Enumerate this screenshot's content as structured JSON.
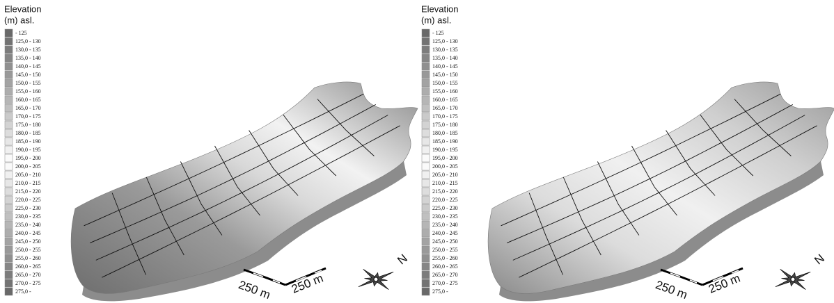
{
  "panels": [
    {
      "legend": {
        "title_lines": [
          "Elevation",
          "(m) asl."
        ],
        "entries": [
          "- 125",
          "125,0 - 130",
          "130,0 - 135",
          "135,0 - 140",
          "140,0 - 145",
          "145,0 - 150",
          "150,0 - 155",
          "155,0 - 160",
          "160,0 - 165",
          "165,0 - 170",
          "170,0 - 175",
          "175,0 - 180",
          "180,0 - 185",
          "185,0 - 190",
          "190,0 - 195",
          "195,0 - 200",
          "200,0 - 205",
          "205,0 - 210",
          "210,0 - 215",
          "215,0 - 220",
          "220,0 - 225",
          "225,0 - 230",
          "230,0 - 235",
          "235,0 - 240",
          "240,0 - 245",
          "245,0 - 250",
          "250,0 - 255",
          "255,0 - 260",
          "260,0 - 265",
          "265,0 - 270",
          "270,0 - 275",
          "275,0 -"
        ]
      },
      "scale_labels": [
        "250 m",
        "250 m"
      ],
      "north": "N"
    },
    {
      "legend": {
        "title_lines": [
          "Elevation",
          "(m) asl."
        ],
        "entries": [
          "- 125",
          "125,0 - 130",
          "130,0 - 135",
          "135,0 - 140",
          "140,0 - 145",
          "145,0 - 150",
          "150,0 - 155",
          "155,0 - 160",
          "160,0 - 165",
          "165,0 - 170",
          "170,0 - 175",
          "175,0 - 180",
          "180,0 - 185",
          "185,0 - 190",
          "190,0 - 195",
          "195,0 - 200",
          "200,0 - 205",
          "205,0 - 210",
          "210,0 - 215",
          "215,0 - 220",
          "220,0 - 225",
          "225,0 - 230",
          "230,0 - 235",
          "235,0 - 240",
          "240,0 - 245",
          "245,0 - 250",
          "250,0 - 255",
          "255,0 - 260",
          "260,0 - 265",
          "265,0 - 270",
          "270,0 - 275",
          "275,0 -"
        ]
      },
      "scale_labels": [
        "250 m",
        "250 m"
      ],
      "north": "N"
    }
  ]
}
